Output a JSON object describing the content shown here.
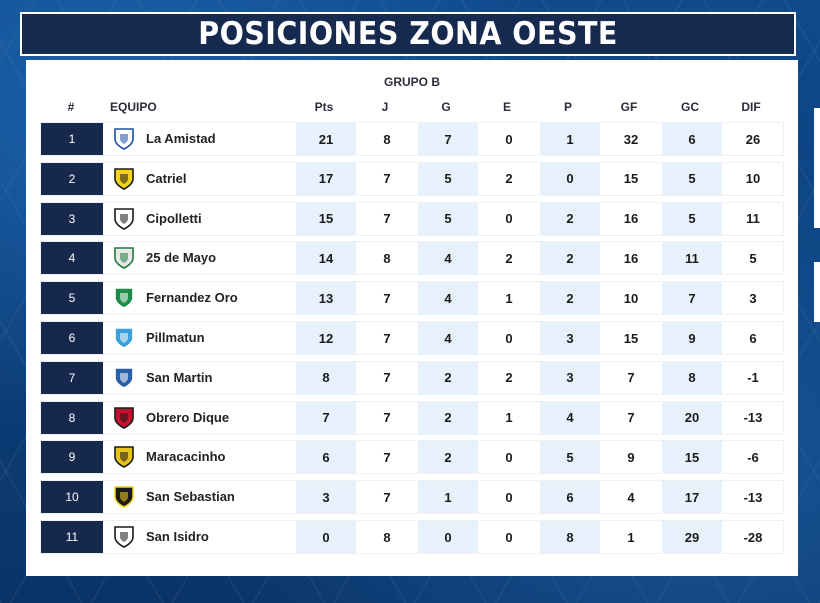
{
  "title": "POSICIONES ZONA OESTE",
  "group": "GRUPO B",
  "headers": {
    "pos": "#",
    "team": "EQUIPO",
    "pts": "Pts",
    "j": "J",
    "g": "G",
    "e": "E",
    "p": "P",
    "gf": "GF",
    "gc": "GC",
    "dif": "DIF"
  },
  "rows": [
    {
      "pos": "1",
      "team": "La Amistad",
      "pts": "21",
      "j": "8",
      "g": "7",
      "e": "0",
      "p": "1",
      "gf": "32",
      "gc": "6",
      "dif": "26",
      "crest": {
        "icon": "la-amistad-crest-icon",
        "primary": "#ffffff",
        "secondary": "#1f4fa8"
      }
    },
    {
      "pos": "2",
      "team": "Catriel",
      "pts": "17",
      "j": "7",
      "g": "5",
      "e": "2",
      "p": "0",
      "gf": "15",
      "gc": "5",
      "dif": "10",
      "crest": {
        "icon": "catriel-crest-icon",
        "primary": "#f2d21b",
        "secondary": "#1a1a1a"
      }
    },
    {
      "pos": "3",
      "team": "Cipolletti",
      "pts": "15",
      "j": "7",
      "g": "5",
      "e": "0",
      "p": "2",
      "gf": "16",
      "gc": "5",
      "dif": "11",
      "crest": {
        "icon": "cipolletti-crest-icon",
        "primary": "#ffffff",
        "secondary": "#1a1a1a"
      }
    },
    {
      "pos": "4",
      "team": "25 de Mayo",
      "pts": "14",
      "j": "8",
      "g": "4",
      "e": "2",
      "p": "2",
      "gf": "16",
      "gc": "11",
      "dif": "5",
      "crest": {
        "icon": "25-de-mayo-crest-icon",
        "primary": "#e8e8e8",
        "secondary": "#1f7a3a"
      }
    },
    {
      "pos": "5",
      "team": "Fernandez Oro",
      "pts": "13",
      "j": "7",
      "g": "4",
      "e": "1",
      "p": "2",
      "gf": "10",
      "gc": "7",
      "dif": "3",
      "crest": {
        "icon": "fernandez-oro-crest-icon",
        "primary": "#1e8c4a",
        "secondary": "#ffffff"
      }
    },
    {
      "pos": "6",
      "team": "Pillmatun",
      "pts": "12",
      "j": "7",
      "g": "4",
      "e": "0",
      "p": "3",
      "gf": "15",
      "gc": "9",
      "dif": "6",
      "crest": {
        "icon": "pillmatun-crest-icon",
        "primary": "#3aa0d8",
        "secondary": "#ffffff"
      }
    },
    {
      "pos": "7",
      "team": "San Martin",
      "pts": "8",
      "j": "7",
      "g": "2",
      "e": "2",
      "p": "3",
      "gf": "7",
      "gc": "8",
      "dif": "-1",
      "crest": {
        "icon": "san-martin-crest-icon",
        "primary": "#2a5fa8",
        "secondary": "#ffffff"
      }
    },
    {
      "pos": "8",
      "team": "Obrero Dique",
      "pts": "7",
      "j": "7",
      "g": "2",
      "e": "1",
      "p": "4",
      "gf": "7",
      "gc": "20",
      "dif": "-13",
      "crest": {
        "icon": "obrero-dique-crest-icon",
        "primary": "#c8102e",
        "secondary": "#1a1a1a"
      }
    },
    {
      "pos": "9",
      "team": "Maracacinho",
      "pts": "6",
      "j": "7",
      "g": "2",
      "e": "0",
      "p": "5",
      "gf": "9",
      "gc": "15",
      "dif": "-6",
      "crest": {
        "icon": "maracacinho-crest-icon",
        "primary": "#e7c21a",
        "secondary": "#1a1a1a"
      }
    },
    {
      "pos": "10",
      "team": "San Sebastian",
      "pts": "3",
      "j": "7",
      "g": "1",
      "e": "0",
      "p": "6",
      "gf": "4",
      "gc": "17",
      "dif": "-13",
      "crest": {
        "icon": "san-sebastian-crest-icon",
        "primary": "#1a1a1a",
        "secondary": "#f2d21b"
      }
    },
    {
      "pos": "11",
      "team": "San Isidro",
      "pts": "0",
      "j": "8",
      "g": "0",
      "e": "0",
      "p": "8",
      "gf": "1",
      "gc": "29",
      "dif": "-28",
      "crest": {
        "icon": "san-isidro-crest-icon",
        "primary": "#ffffff",
        "secondary": "#1a1a1a"
      }
    }
  ]
}
